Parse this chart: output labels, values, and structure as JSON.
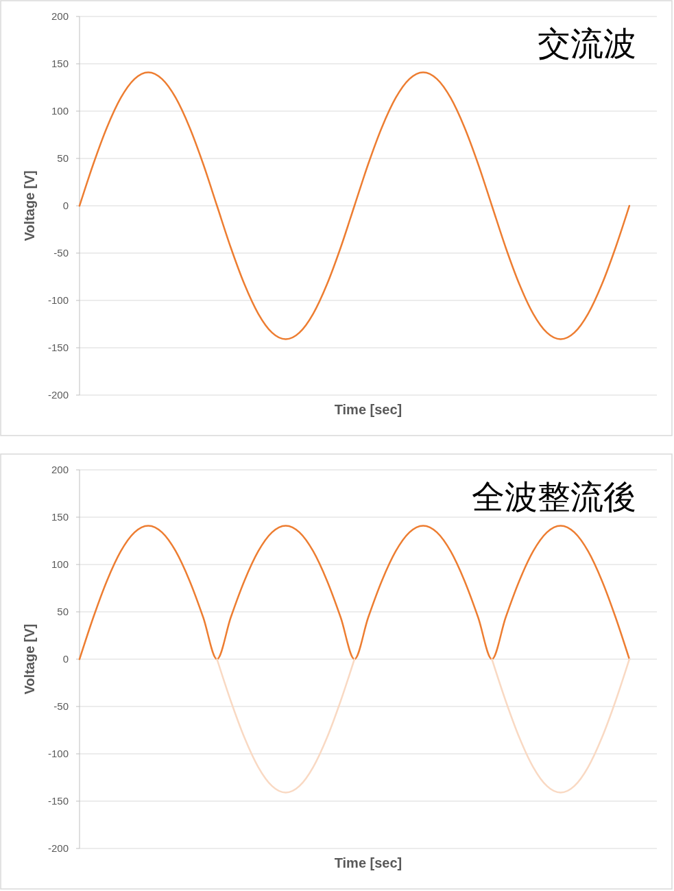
{
  "chart_data": [
    {
      "type": "line",
      "title": "交流波",
      "xlabel": "Time [sec]",
      "ylabel": "Voltage [V]",
      "categories": [
        null,
        null,
        null,
        null,
        null,
        null,
        null,
        null,
        null,
        null,
        null,
        null,
        null,
        null,
        null,
        null,
        null,
        null,
        null,
        null,
        null,
        null,
        null,
        null,
        null,
        null,
        null,
        null,
        null,
        null,
        null,
        null,
        null,
        null,
        null,
        null,
        null,
        null,
        null,
        null,
        null,
        null
      ],
      "series": [
        {
          "color": "#ed7d31",
          "values": [
            0,
            44,
            83,
            114,
            134,
            141,
            134,
            114,
            83,
            44,
            0,
            -44,
            -83,
            -114,
            -134,
            -141,
            -134,
            -114,
            -83,
            -44,
            0,
            44,
            83,
            114,
            134,
            141,
            134,
            114,
            83,
            44,
            0,
            -44,
            -83,
            -114,
            -134,
            -141,
            -134,
            -114,
            -83,
            -44,
            0,
            null
          ]
        }
      ],
      "ylim": [
        -200,
        200
      ],
      "yticks": [
        -200,
        -150,
        -100,
        -50,
        0,
        50,
        100,
        150,
        200
      ],
      "grid": "y",
      "tick_labels": "y"
    },
    {
      "type": "line",
      "title": "全波整流後",
      "xlabel": "Time [sec]",
      "ylabel": "Voltage [V]",
      "categories": [
        null,
        null,
        null,
        null,
        null,
        null,
        null,
        null,
        null,
        null,
        null,
        null,
        null,
        null,
        null,
        null,
        null,
        null,
        null,
        null,
        null,
        null,
        null,
        null,
        null,
        null,
        null,
        null,
        null,
        null,
        null,
        null,
        null,
        null,
        null,
        null,
        null,
        null,
        null,
        null,
        null,
        null
      ],
      "series": [
        {
          "color": "#ed7d31",
          "values": [
            0,
            44,
            83,
            114,
            134,
            141,
            134,
            114,
            83,
            44,
            0,
            44,
            83,
            114,
            134,
            141,
            134,
            114,
            83,
            44,
            0,
            44,
            83,
            114,
            134,
            141,
            134,
            114,
            83,
            44,
            0,
            44,
            83,
            114,
            134,
            141,
            134,
            114,
            83,
            44,
            0,
            null
          ]
        },
        {
          "color": "#f9d9c3",
          "values": [
            null,
            null,
            null,
            null,
            null,
            null,
            null,
            null,
            null,
            null,
            0,
            -44,
            -83,
            -114,
            -134,
            -141,
            -134,
            -114,
            -83,
            -44,
            0,
            null,
            null,
            null,
            null,
            null,
            null,
            null,
            null,
            null,
            0,
            -44,
            -83,
            -114,
            -134,
            -141,
            -134,
            -114,
            -83,
            -44,
            0,
            null
          ]
        }
      ],
      "ylim": [
        -200,
        200
      ],
      "yticks": [
        -200,
        -150,
        -100,
        -50,
        0,
        50,
        100,
        150,
        200
      ],
      "grid": "y",
      "tick_labels": "y"
    }
  ]
}
